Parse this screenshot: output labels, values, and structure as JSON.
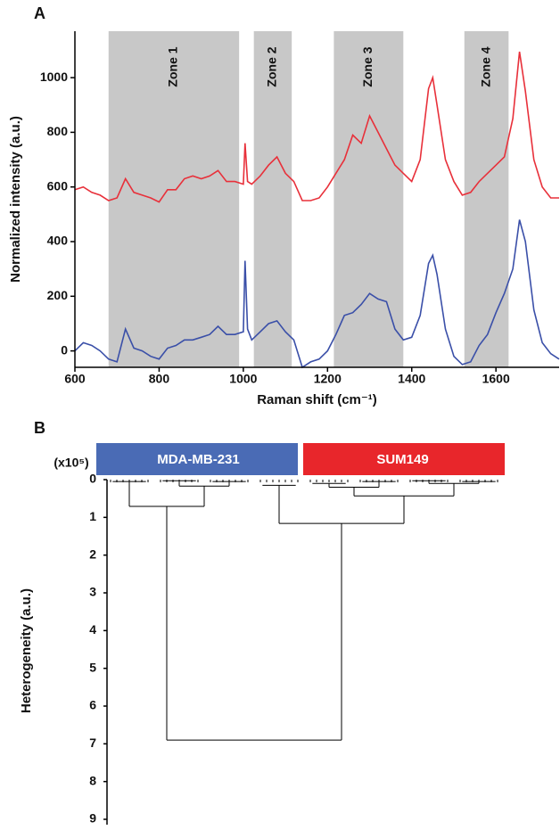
{
  "chart_data": [
    {
      "type": "line",
      "panel": "A",
      "xlabel": "Raman shift (cm⁻¹)",
      "ylabel": "Normalized intensity (a.u.)",
      "xlim": [
        600,
        1750
      ],
      "ylim": [
        -60,
        1170
      ],
      "xticks": [
        600,
        800,
        1000,
        1200,
        1400,
        1600
      ],
      "yticks": [
        0,
        200,
        400,
        600,
        800,
        1000
      ],
      "zone_color": "#c8c8c8",
      "zones": [
        {
          "label": "Zone 1",
          "range": [
            680,
            990
          ]
        },
        {
          "label": "Zone 2",
          "range": [
            1025,
            1115
          ]
        },
        {
          "label": "Zone 3",
          "range": [
            1215,
            1380
          ]
        },
        {
          "label": "Zone 4",
          "range": [
            1525,
            1630
          ]
        }
      ],
      "x": [
        600,
        620,
        640,
        660,
        680,
        700,
        720,
        740,
        760,
        780,
        800,
        820,
        840,
        860,
        880,
        900,
        920,
        940,
        960,
        980,
        1000,
        1004,
        1010,
        1020,
        1040,
        1060,
        1080,
        1100,
        1120,
        1140,
        1160,
        1180,
        1200,
        1220,
        1240,
        1260,
        1280,
        1300,
        1320,
        1340,
        1360,
        1380,
        1400,
        1420,
        1440,
        1450,
        1460,
        1480,
        1500,
        1520,
        1540,
        1560,
        1580,
        1600,
        1620,
        1640,
        1656,
        1670,
        1690,
        1710,
        1730,
        1750
      ],
      "series": [
        {
          "color": "#e8303a",
          "values": [
            590,
            600,
            580,
            570,
            550,
            560,
            630,
            580,
            570,
            560,
            545,
            590,
            590,
            630,
            640,
            630,
            640,
            660,
            620,
            620,
            610,
            760,
            620,
            610,
            640,
            680,
            710,
            650,
            620,
            550,
            550,
            560,
            600,
            650,
            700,
            790,
            760,
            860,
            800,
            740,
            680,
            650,
            620,
            700,
            960,
            1000,
            900,
            700,
            620,
            570,
            580,
            620,
            650,
            680,
            710,
            850,
            1095,
            950,
            700,
            600,
            560,
            560
          ]
        },
        {
          "color": "#3a4fa8",
          "values": [
            0,
            30,
            20,
            0,
            -30,
            -40,
            80,
            10,
            0,
            -20,
            -30,
            10,
            20,
            40,
            40,
            50,
            60,
            90,
            60,
            60,
            70,
            330,
            80,
            40,
            70,
            100,
            110,
            70,
            40,
            -60,
            -40,
            -30,
            0,
            60,
            130,
            140,
            170,
            210,
            190,
            180,
            80,
            40,
            50,
            130,
            320,
            350,
            280,
            80,
            -20,
            -50,
            -40,
            20,
            60,
            140,
            210,
            300,
            480,
            400,
            150,
            30,
            -10,
            -30
          ]
        }
      ]
    },
    {
      "type": "dendrogram",
      "panel": "B",
      "ylabel": "Heterogeneity (a.u.)",
      "yunit": "(x10⁵)",
      "ylim": [
        0,
        9
      ],
      "yticks": [
        0,
        1,
        2,
        3,
        4,
        5,
        6,
        7,
        8,
        9
      ],
      "groups": [
        {
          "name": "MDA-MB-231",
          "color": "#4a6bb5"
        },
        {
          "name": "SUM149",
          "color": "#e8262b"
        }
      ],
      "tree": {
        "height": 6.9,
        "children": [
          {
            "height": 0.71,
            "children": [
              {
                "height": 0.05
              },
              {
                "height": 0.17,
                "children": [
                  {
                    "height": 0.03
                  },
                  {
                    "height": 0.05
                  }
                ]
              }
            ]
          },
          {
            "height": 1.16,
            "children": [
              {
                "height": 0.15
              },
              {
                "height": 0.43,
                "children": [
                  {
                    "height": 0.2,
                    "children": [
                      {
                        "height": 0.1
                      },
                      {
                        "height": 0.05
                      }
                    ]
                  },
                  {
                    "height": 0.1,
                    "children": [
                      {
                        "height": 0.03
                      },
                      {
                        "height": 0.05
                      }
                    ]
                  }
                ]
              }
            ]
          }
        ]
      }
    }
  ]
}
